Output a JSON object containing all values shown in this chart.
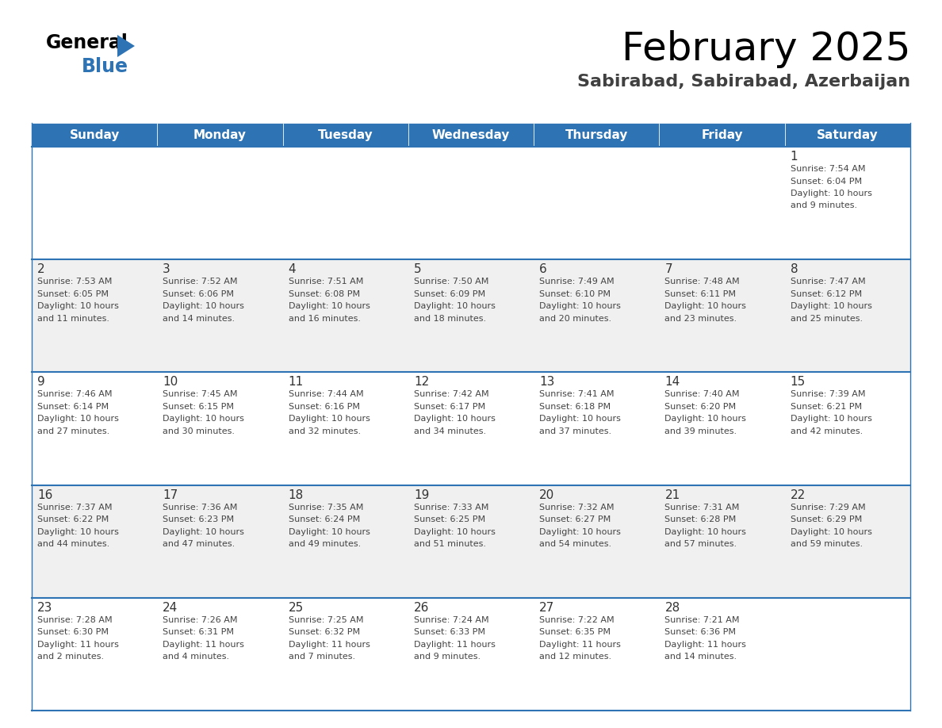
{
  "title": "February 2025",
  "subtitle": "Sabirabad, Sabirabad, Azerbaijan",
  "header_color": "#2E74B5",
  "header_text_color": "#FFFFFF",
  "background_color": "#FFFFFF",
  "cell_alt_color": "#F0F0F0",
  "border_color": "#2E74B5",
  "day_names": [
    "Sunday",
    "Monday",
    "Tuesday",
    "Wednesday",
    "Thursday",
    "Friday",
    "Saturday"
  ],
  "days": [
    {
      "day": 1,
      "col": 6,
      "row": 0,
      "sunrise": "7:54 AM",
      "sunset": "6:04 PM",
      "daylight_hours": 10,
      "daylight_minutes": 9
    },
    {
      "day": 2,
      "col": 0,
      "row": 1,
      "sunrise": "7:53 AM",
      "sunset": "6:05 PM",
      "daylight_hours": 10,
      "daylight_minutes": 11
    },
    {
      "day": 3,
      "col": 1,
      "row": 1,
      "sunrise": "7:52 AM",
      "sunset": "6:06 PM",
      "daylight_hours": 10,
      "daylight_minutes": 14
    },
    {
      "day": 4,
      "col": 2,
      "row": 1,
      "sunrise": "7:51 AM",
      "sunset": "6:08 PM",
      "daylight_hours": 10,
      "daylight_minutes": 16
    },
    {
      "day": 5,
      "col": 3,
      "row": 1,
      "sunrise": "7:50 AM",
      "sunset": "6:09 PM",
      "daylight_hours": 10,
      "daylight_minutes": 18
    },
    {
      "day": 6,
      "col": 4,
      "row": 1,
      "sunrise": "7:49 AM",
      "sunset": "6:10 PM",
      "daylight_hours": 10,
      "daylight_minutes": 20
    },
    {
      "day": 7,
      "col": 5,
      "row": 1,
      "sunrise": "7:48 AM",
      "sunset": "6:11 PM",
      "daylight_hours": 10,
      "daylight_minutes": 23
    },
    {
      "day": 8,
      "col": 6,
      "row": 1,
      "sunrise": "7:47 AM",
      "sunset": "6:12 PM",
      "daylight_hours": 10,
      "daylight_minutes": 25
    },
    {
      "day": 9,
      "col": 0,
      "row": 2,
      "sunrise": "7:46 AM",
      "sunset": "6:14 PM",
      "daylight_hours": 10,
      "daylight_minutes": 27
    },
    {
      "day": 10,
      "col": 1,
      "row": 2,
      "sunrise": "7:45 AM",
      "sunset": "6:15 PM",
      "daylight_hours": 10,
      "daylight_minutes": 30
    },
    {
      "day": 11,
      "col": 2,
      "row": 2,
      "sunrise": "7:44 AM",
      "sunset": "6:16 PM",
      "daylight_hours": 10,
      "daylight_minutes": 32
    },
    {
      "day": 12,
      "col": 3,
      "row": 2,
      "sunrise": "7:42 AM",
      "sunset": "6:17 PM",
      "daylight_hours": 10,
      "daylight_minutes": 34
    },
    {
      "day": 13,
      "col": 4,
      "row": 2,
      "sunrise": "7:41 AM",
      "sunset": "6:18 PM",
      "daylight_hours": 10,
      "daylight_minutes": 37
    },
    {
      "day": 14,
      "col": 5,
      "row": 2,
      "sunrise": "7:40 AM",
      "sunset": "6:20 PM",
      "daylight_hours": 10,
      "daylight_minutes": 39
    },
    {
      "day": 15,
      "col": 6,
      "row": 2,
      "sunrise": "7:39 AM",
      "sunset": "6:21 PM",
      "daylight_hours": 10,
      "daylight_minutes": 42
    },
    {
      "day": 16,
      "col": 0,
      "row": 3,
      "sunrise": "7:37 AM",
      "sunset": "6:22 PM",
      "daylight_hours": 10,
      "daylight_minutes": 44
    },
    {
      "day": 17,
      "col": 1,
      "row": 3,
      "sunrise": "7:36 AM",
      "sunset": "6:23 PM",
      "daylight_hours": 10,
      "daylight_minutes": 47
    },
    {
      "day": 18,
      "col": 2,
      "row": 3,
      "sunrise": "7:35 AM",
      "sunset": "6:24 PM",
      "daylight_hours": 10,
      "daylight_minutes": 49
    },
    {
      "day": 19,
      "col": 3,
      "row": 3,
      "sunrise": "7:33 AM",
      "sunset": "6:25 PM",
      "daylight_hours": 10,
      "daylight_minutes": 51
    },
    {
      "day": 20,
      "col": 4,
      "row": 3,
      "sunrise": "7:32 AM",
      "sunset": "6:27 PM",
      "daylight_hours": 10,
      "daylight_minutes": 54
    },
    {
      "day": 21,
      "col": 5,
      "row": 3,
      "sunrise": "7:31 AM",
      "sunset": "6:28 PM",
      "daylight_hours": 10,
      "daylight_minutes": 57
    },
    {
      "day": 22,
      "col": 6,
      "row": 3,
      "sunrise": "7:29 AM",
      "sunset": "6:29 PM",
      "daylight_hours": 10,
      "daylight_minutes": 59
    },
    {
      "day": 23,
      "col": 0,
      "row": 4,
      "sunrise": "7:28 AM",
      "sunset": "6:30 PM",
      "daylight_hours": 11,
      "daylight_minutes": 2
    },
    {
      "day": 24,
      "col": 1,
      "row": 4,
      "sunrise": "7:26 AM",
      "sunset": "6:31 PM",
      "daylight_hours": 11,
      "daylight_minutes": 4
    },
    {
      "day": 25,
      "col": 2,
      "row": 4,
      "sunrise": "7:25 AM",
      "sunset": "6:32 PM",
      "daylight_hours": 11,
      "daylight_minutes": 7
    },
    {
      "day": 26,
      "col": 3,
      "row": 4,
      "sunrise": "7:24 AM",
      "sunset": "6:33 PM",
      "daylight_hours": 11,
      "daylight_minutes": 9
    },
    {
      "day": 27,
      "col": 4,
      "row": 4,
      "sunrise": "7:22 AM",
      "sunset": "6:35 PM",
      "daylight_hours": 11,
      "daylight_minutes": 12
    },
    {
      "day": 28,
      "col": 5,
      "row": 4,
      "sunrise": "7:21 AM",
      "sunset": "6:36 PM",
      "daylight_hours": 11,
      "daylight_minutes": 14
    }
  ],
  "logo_color_general": "#000000",
  "logo_color_blue": "#2E74B5",
  "logo_triangle_color": "#2E74B5",
  "title_fontsize": 36,
  "subtitle_fontsize": 16,
  "header_fontsize": 11,
  "day_num_fontsize": 11,
  "cell_text_fontsize": 8
}
